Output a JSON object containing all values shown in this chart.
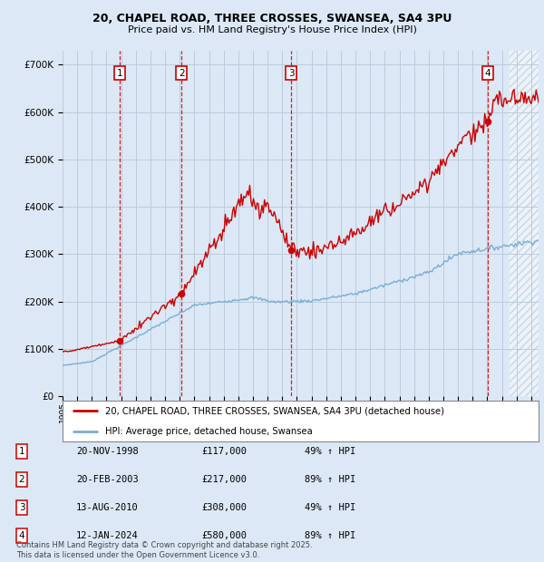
{
  "title1": "20, CHAPEL ROAD, THREE CROSSES, SWANSEA, SA4 3PU",
  "title2": "Price paid vs. HM Land Registry's House Price Index (HPI)",
  "ylabel_ticks": [
    "£0",
    "£100K",
    "£200K",
    "£300K",
    "£400K",
    "£500K",
    "£600K",
    "£700K"
  ],
  "ytick_vals": [
    0,
    100000,
    200000,
    300000,
    400000,
    500000,
    600000,
    700000
  ],
  "ylim": [
    0,
    730000
  ],
  "xlim_start": 1995.0,
  "xlim_end": 2027.5,
  "sale_dates": [
    1998.89,
    2003.13,
    2010.62,
    2024.04
  ],
  "sale_prices": [
    117000,
    217000,
    308000,
    580000
  ],
  "sale_labels": [
    "1",
    "2",
    "3",
    "4"
  ],
  "legend_red": "20, CHAPEL ROAD, THREE CROSSES, SWANSEA, SA4 3PU (detached house)",
  "legend_blue": "HPI: Average price, detached house, Swansea",
  "table_rows": [
    [
      "1",
      "20-NOV-1998",
      "£117,000",
      "49% ↑ HPI"
    ],
    [
      "2",
      "20-FEB-2003",
      "£217,000",
      "89% ↑ HPI"
    ],
    [
      "3",
      "13-AUG-2010",
      "£308,000",
      "49% ↑ HPI"
    ],
    [
      "4",
      "12-JAN-2024",
      "£580,000",
      "89% ↑ HPI"
    ]
  ],
  "footer": "Contains HM Land Registry data © Crown copyright and database right 2025.\nThis data is licensed under the Open Government Licence v3.0.",
  "bg_color": "#dce8f5",
  "plot_bg": "#dce8f5",
  "red_color": "#cc0000",
  "blue_color": "#7aaed6",
  "hatch_start": 2025.5
}
